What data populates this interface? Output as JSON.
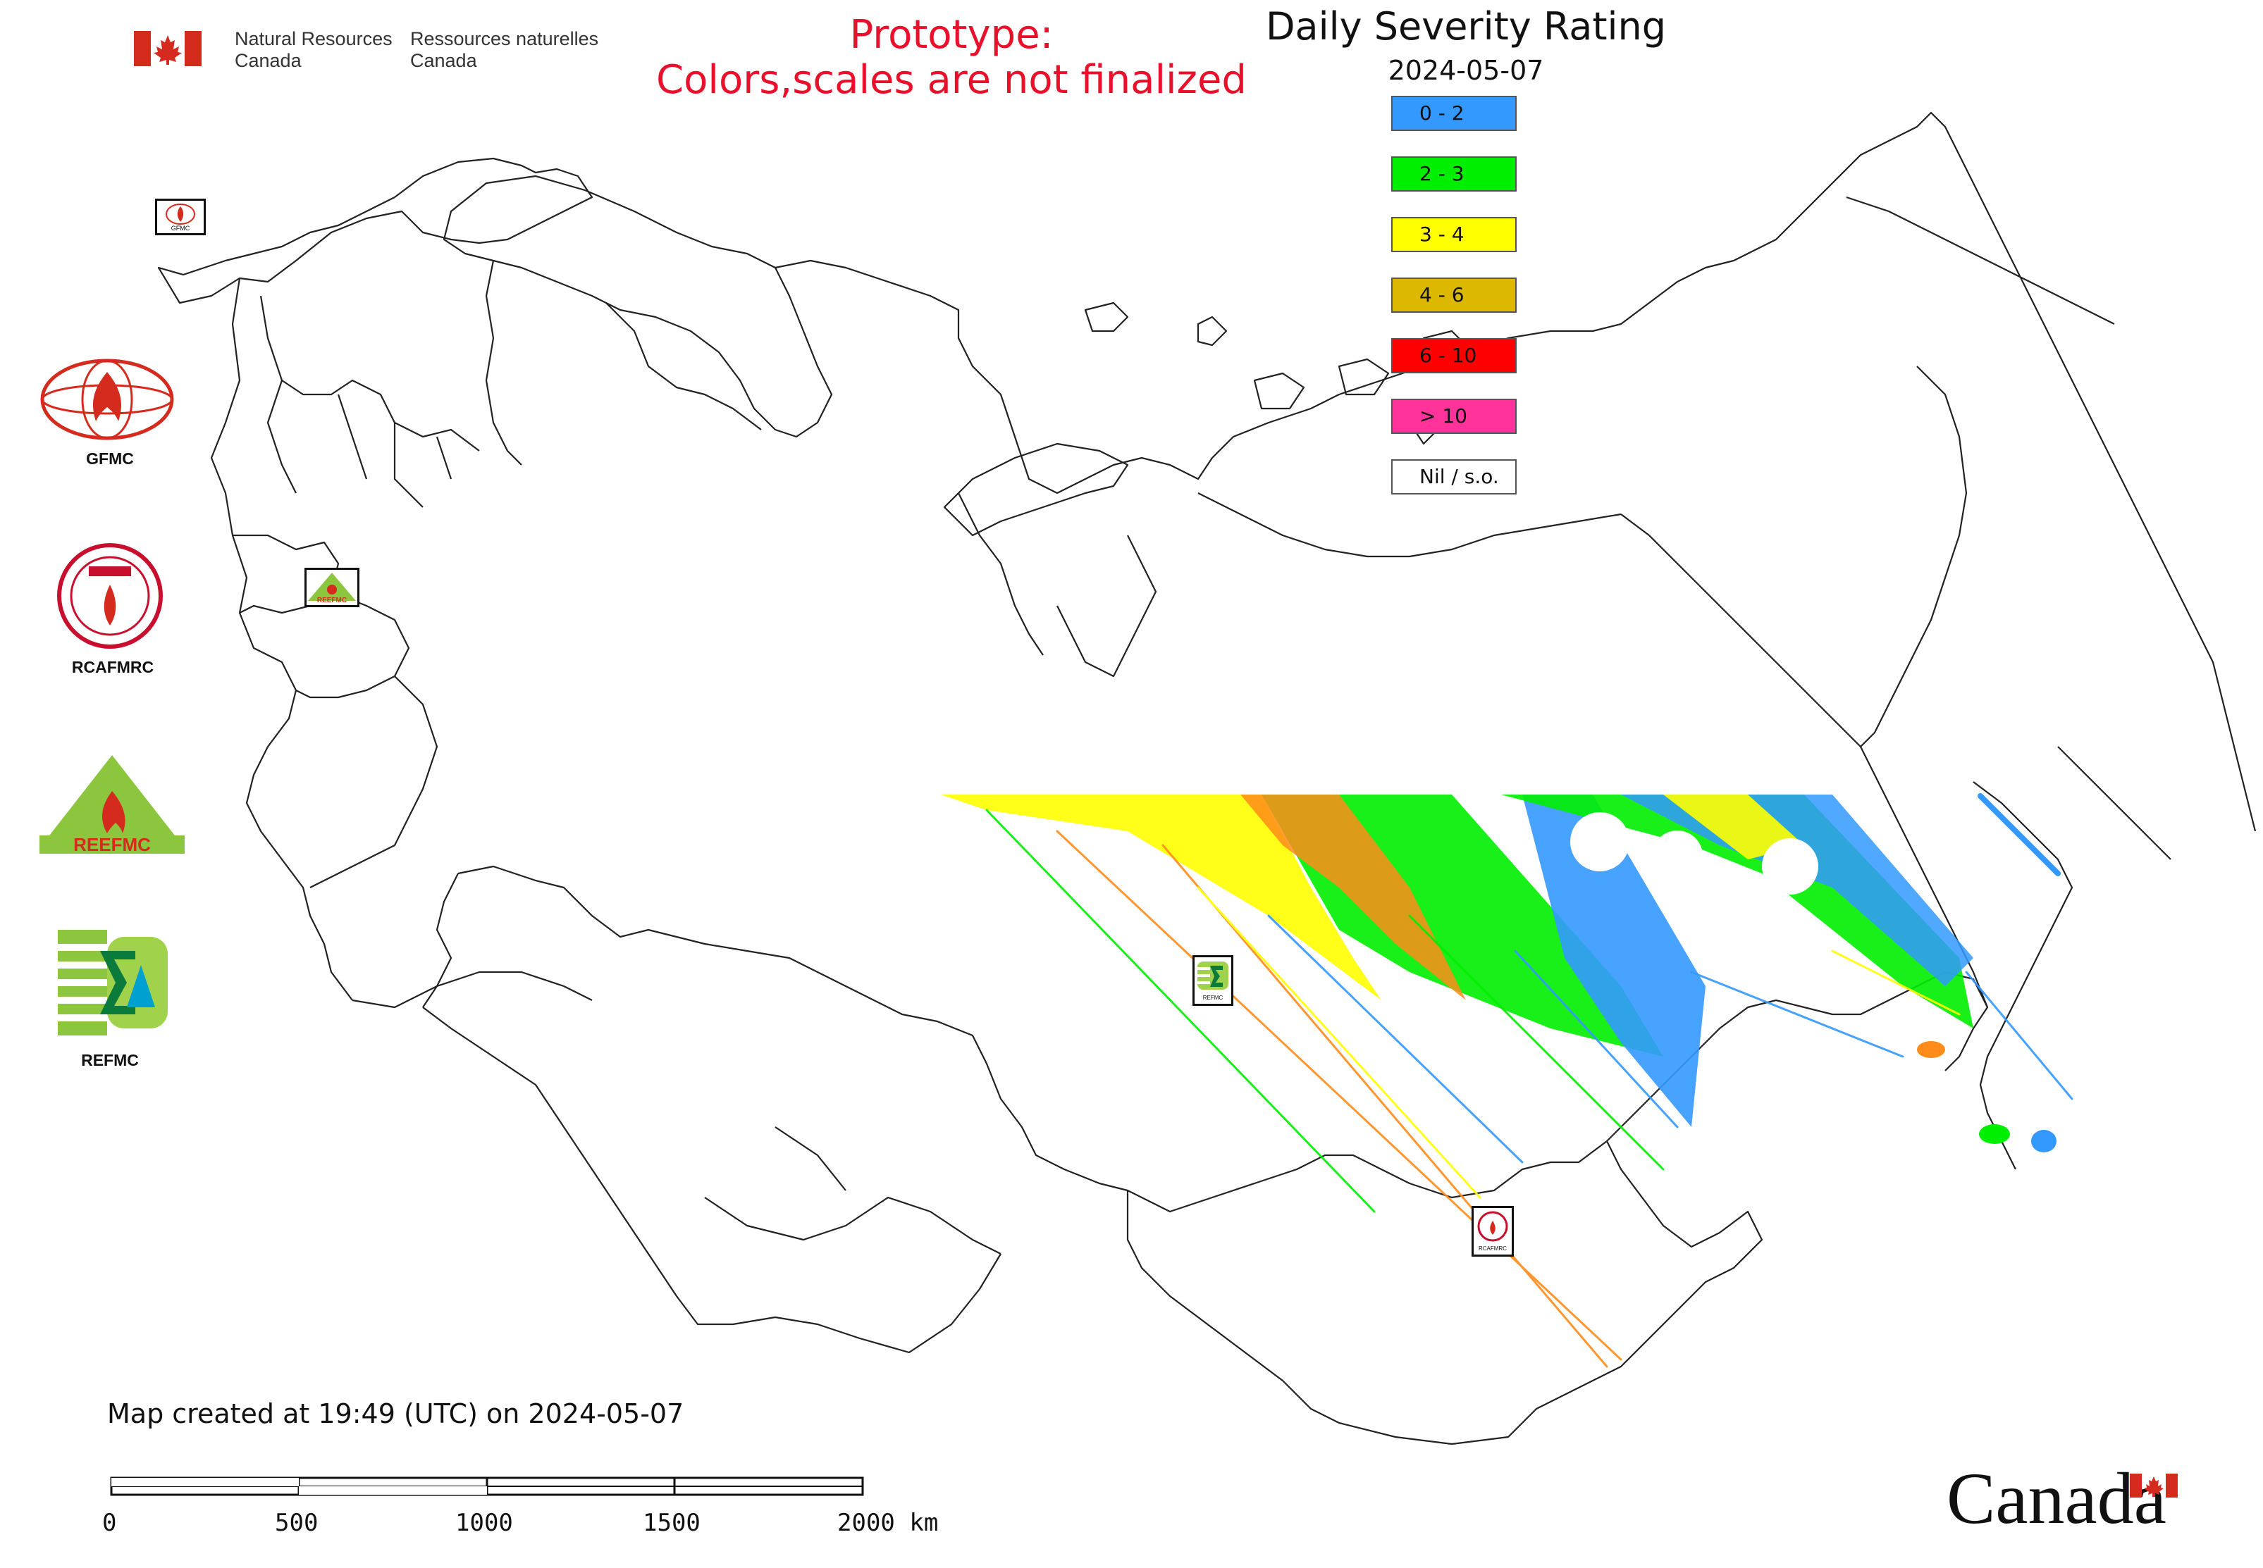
{
  "header": {
    "dept_en_line1": "Natural Resources",
    "dept_en_line2": "Canada",
    "dept_fr_line1": "Ressources naturelles",
    "dept_fr_line2": "Canada",
    "prototype_line1": "Prototype:",
    "prototype_line2": "Colors,scales are not finalized"
  },
  "legend": {
    "title": "Daily Severity Rating",
    "date": "2024-05-07",
    "classes": [
      {
        "label": "0 - 2",
        "color": "#3399ff"
      },
      {
        "label": "2 - 3",
        "color": "#00ee00"
      },
      {
        "label": "3 - 4",
        "color": "#ffff00"
      },
      {
        "label": "4 - 6",
        "color": "#dcb800"
      },
      {
        "label": "6 - 10",
        "color": "#ff0000"
      },
      {
        "label": "> 10",
        "color": "#ff3399"
      },
      {
        "label": "Nil / s.o.",
        "color": "#ffffff"
      }
    ]
  },
  "logos": [
    {
      "label": "GFMC",
      "icon": "gfmc-globe-flame-logo"
    },
    {
      "label": "RCAFMRC",
      "icon": "rcafmrc-round-seal-logo"
    },
    {
      "label": "",
      "icon": "reefmc-triangle-logo"
    },
    {
      "label": "REFMC",
      "icon": "refmc-sigma-logo"
    }
  ],
  "map_markers": [
    {
      "label": "GFMC",
      "icon": "gfmc-marker"
    },
    {
      "label": "REEFMC",
      "icon": "reefmc-marker"
    },
    {
      "label": "REFMC",
      "icon": "refmc-marker"
    },
    {
      "label": "RCAFMRC",
      "icon": "rcafmrc-marker"
    }
  ],
  "footer": {
    "created": "Map created at 19:49 (UTC) on 2024-05-07",
    "scale_labels": [
      "0",
      "500",
      "1000",
      "1500",
      "2000 km"
    ],
    "canada_wordmark": "Canada"
  },
  "colors": {
    "prototype_text": "#e8102a",
    "boundary_line": "#222222",
    "flag_red": "#d52b1e"
  }
}
